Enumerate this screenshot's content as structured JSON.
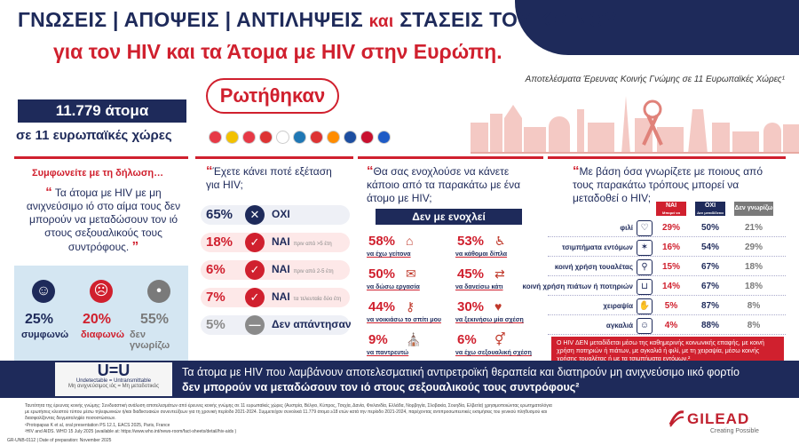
{
  "header": {
    "title_line1_a": "ΓΝΩΣΕΙΣ | ΑΠΟΨΕΙΣ | ΑΝΤΙΛΗΨΕΙΣ",
    "title_line1_b": "και",
    "title_line1_c": "ΣΤΑΣΕΙΣ ΤΟΥ ΚΟΙΝΟΥ",
    "title_line2": "για τον HIV  και τα Άτομα με HIV στην Ευρώπη.",
    "subtitle": "Αποτελέσματα Έρευνας Κοινής Γνώμης σε 11 Ευρωπαϊκές Χώρες¹"
  },
  "survey": {
    "asked_label": "Ρωτήθηκαν",
    "people": "11.779 άτομα",
    "countries": "σε 11 ευρωπαϊκές χώρες",
    "flags": [
      "#e63946",
      "#f2c100",
      "#e63946",
      "#d33",
      "#ffffff",
      "#1f77b4",
      "#d33",
      "#ff8c00",
      "#1d4ea0",
      "#c8102e",
      "#1e5bc6"
    ]
  },
  "panel1": {
    "heading": "Συμφωνείτε με τη δήλωση…",
    "statement": "Τα άτομα με HIV με μη ανιχνεύσιμο ιό στο αίμα τους δεν μπορούν να μεταδώσουν τον ιό στους σεξουαλικούς τους συντρόφους.",
    "results": [
      {
        "pct": "25%",
        "label": "συμφωνώ",
        "color": "#1e2a5a"
      },
      {
        "pct": "20%",
        "label": "διαφωνώ",
        "color": "#d0202e"
      },
      {
        "pct": "55%",
        "label": "δεν γνωρίζω",
        "color": "#7a7a7a"
      }
    ]
  },
  "panel2": {
    "question": "Έχετε κάνει ποτέ εξέταση για HIV;",
    "rows": [
      {
        "pct": "65%",
        "label": "ΟΧΙ",
        "note": "",
        "icon": "✕",
        "icon_color": "#1e2a5a"
      },
      {
        "pct": "18%",
        "label": "ΝΑΙ",
        "note": "πριν από >5 έτη",
        "icon": "✓",
        "icon_color": "#d0202e"
      },
      {
        "pct": "6%",
        "label": "ΝΑΙ",
        "note": "πριν από 2-5 έτη",
        "icon": "✓",
        "icon_color": "#d0202e"
      },
      {
        "pct": "7%",
        "label": "ΝΑΙ",
        "note": "τα τελευταία δύο έτη",
        "icon": "✓",
        "icon_color": "#d0202e"
      },
      {
        "pct": "5%",
        "label": "Δεν απάντησαν",
        "note": "",
        "icon": "—",
        "icon_color": "#8a8a8a"
      }
    ]
  },
  "panel3": {
    "question": "Θα σας ενοχλούσε να κάνετε κάποιο από τα παρακάτω με ένα άτομο με HIV;",
    "bar": "Δεν με ενοχλεί",
    "items": [
      {
        "pct": "58%",
        "label": "να έχω γείτονα"
      },
      {
        "pct": "53%",
        "label": "να κάθομαι δίπλα"
      },
      {
        "pct": "50%",
        "label": "να δώσω εργασία"
      },
      {
        "pct": "45%",
        "label": "να δανείσω κάτι"
      },
      {
        "pct": "44%",
        "label": "να νοικιάσω το σπίτι μου"
      },
      {
        "pct": "30%",
        "label": "να ξεκινήσω μία σχέση"
      },
      {
        "pct": "9%",
        "label": "να παντρευτώ"
      },
      {
        "pct": "6%",
        "label": "να έχω σεξουαλική σχέση"
      }
    ]
  },
  "panel4": {
    "question": "Με βάση όσα γνωρίζετε με ποιους από τους παρακάτω τρόπους μπορεί να μεταδοθεί ο HIV;",
    "columns": [
      "ΝΑΙ",
      "ΟΧΙ",
      "Δεν γνωρίζω"
    ],
    "column_notes": [
      "Μπορεί να μεταδοθεί",
      "Δεν μεταδίδεται",
      ""
    ],
    "rows": [
      {
        "label": "φιλί",
        "values": [
          "29%",
          "50%",
          "21%"
        ]
      },
      {
        "label": "τσιμπήματα εντόμων",
        "values": [
          "16%",
          "54%",
          "29%"
        ]
      },
      {
        "label": "κοινή χρήση τουαλέτας",
        "values": [
          "15%",
          "67%",
          "18%"
        ]
      },
      {
        "label": "κοινή χρήση πιάτων ή ποτηριών",
        "values": [
          "14%",
          "67%",
          "18%"
        ]
      },
      {
        "label": "χειραψία",
        "values": [
          "5%",
          "87%",
          "8%"
        ]
      },
      {
        "label": "αγκαλιά",
        "values": [
          "4%",
          "88%",
          "8%"
        ]
      }
    ],
    "note": "Ο HIV ΔΕΝ μεταδίδεται μέσω της καθημερινής κοινωνικής επαφής, με κοινή χρήση ποτηριών ή πιάτων, με αγκαλιά ή φιλί, με τη χειραψία, μέσω κοινής χρήσης τουαλέτας ή με τα τσιμπήματα εντόμων.²"
  },
  "uu": {
    "logo": "U=U",
    "logo_sub1": "Undetectable = Untransmittable",
    "logo_sub2": "Μη ανιχνεύσιμος ιός = Μη μεταδοτικός",
    "text1": "Τα άτομα με HIV που λαμβάνουν αποτελεσματική αντιρετροϊκή θεραπεία και διατηρούν μη ανιχνεύσιμο ιικό φορτίο",
    "text2": "δεν μπορούν να μεταδώσουν τον ιό στους σεξουαλικούς τους συντρόφους²"
  },
  "footer": {
    "note": "Ταυτότητα της έρευνας κοινής γνώμης: Συνδυαστική ανάλυση αποτελεσμάτων από έρευνες κοινής γνώμης σε 11 ευρωπαϊκές χώρες (Αυστρία, Βέλγιο, Κύπρος, Τσεχία, Δανία, Φινλανδία, Ελλάδα, Νορβηγία, Σλοβακία, Σουηδία, Ελβετία) χρησιμοποιώντας ερωτηματολόγια με ερωτήσεις κλειστού τύπου μέσω τηλεφωνικών ή/και διαδικτυακών συνεντεύξεων για τη χρονική περίοδο 2021-2024. Συμμετείχαν συνολικά 11.779 άτομα ≥18 ετών κατά την περίοδο 2021-2024, παρέχοντας αντιπροσωπευτικές εκτιμήσεις του γενικού πληθυσμού και διασφαλίζοντας δειγματοληψία ποσοστώσεων.",
    "ref1": "¹Protopapas K et al, oral presentation PS 12.1, EACS 2025, Paris, France",
    "ref2": "²HIV and AIDS. WHO 15 July 2025 (available at: https://www.who.int/news-room/fact-sheets/detail/hiv-aids )",
    "code": "GR-UNB-0112 | Date of preparation: November 2025"
  },
  "brand": {
    "name": "GILEAD",
    "tagline": "Creating Possible"
  }
}
